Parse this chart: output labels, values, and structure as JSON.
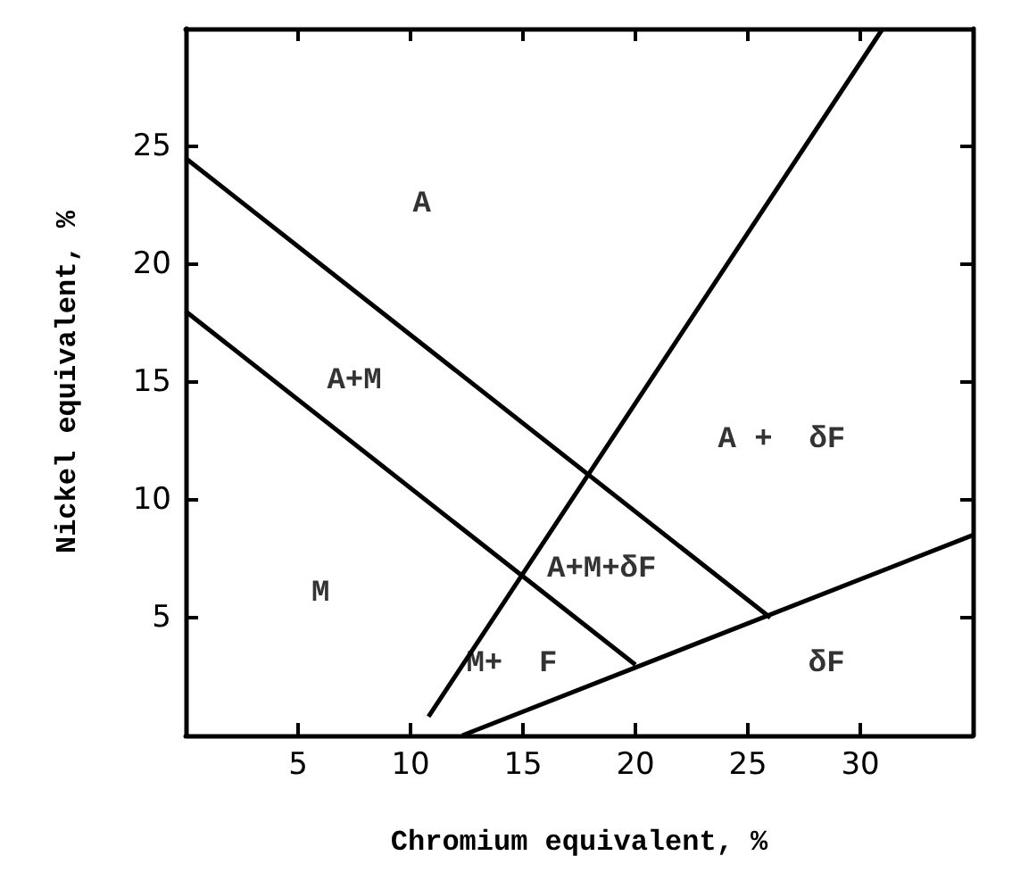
{
  "chart_data": {
    "type": "line",
    "xlabel": "Chromium equivalent, %",
    "ylabel": "Nickel equivalent, %",
    "xlim": [
      0,
      35
    ],
    "ylim": [
      0,
      30
    ],
    "xticks": [
      5,
      10,
      15,
      20,
      25,
      30
    ],
    "yticks": [
      5,
      10,
      15,
      20,
      25
    ],
    "grid": false,
    "marker": "none",
    "line_style": "solid",
    "series": [
      {
        "color": "#000000",
        "x": [
          0,
          26
        ],
        "values": [
          24.5,
          5
        ]
      },
      {
        "color": "#000000",
        "x": [
          0,
          20
        ],
        "values": [
          18,
          3
        ]
      },
      {
        "color": "#000000",
        "x": [
          10.8,
          31
        ],
        "values": [
          0.8,
          30
        ]
      },
      {
        "color": "#000000",
        "x": [
          12.3,
          35
        ],
        "values": [
          0,
          8.5
        ]
      }
    ],
    "annotations": [
      "A",
      "A+M",
      "M",
      "A+M+δF",
      "M+  F",
      "A +  δF",
      "δF"
    ]
  }
}
